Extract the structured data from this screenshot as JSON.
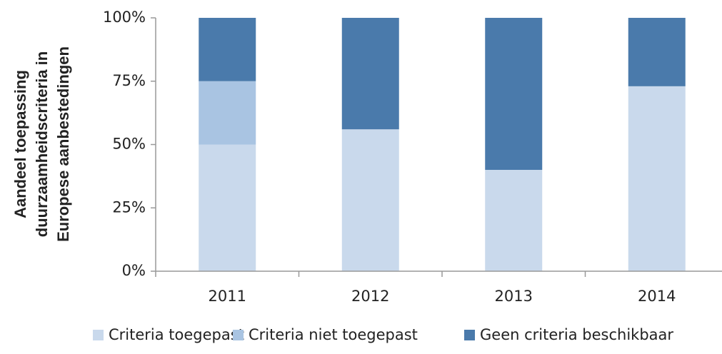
{
  "chart_data": {
    "type": "stacked_bar",
    "ylabel": [
      "Aandeel toepassing",
      "duurzaamheidscriteria in",
      "Europese aanbestedingen"
    ],
    "categories": [
      "2011",
      "2012",
      "2013",
      "2014"
    ],
    "series": [
      {
        "name": "Criteria toegepast",
        "color": "#c9d9ec",
        "values": [
          50,
          56,
          40,
          73
        ]
      },
      {
        "name": "Criteria niet toegepast",
        "color": "#a9c4e2",
        "values": [
          25,
          0,
          0,
          0
        ]
      },
      {
        "name": "Geen criteria beschikbaar",
        "color": "#4a7aab",
        "values": [
          25,
          44,
          60,
          27
        ]
      }
    ],
    "ylim": [
      0,
      100
    ],
    "yticks": [
      {
        "value": 0,
        "label": "0%"
      },
      {
        "value": 25,
        "label": "25%"
      },
      {
        "value": 50,
        "label": "50%"
      },
      {
        "value": 75,
        "label": "75%"
      },
      {
        "value": 100,
        "label": "100%"
      }
    ],
    "grid": false,
    "legend": "bottom"
  }
}
